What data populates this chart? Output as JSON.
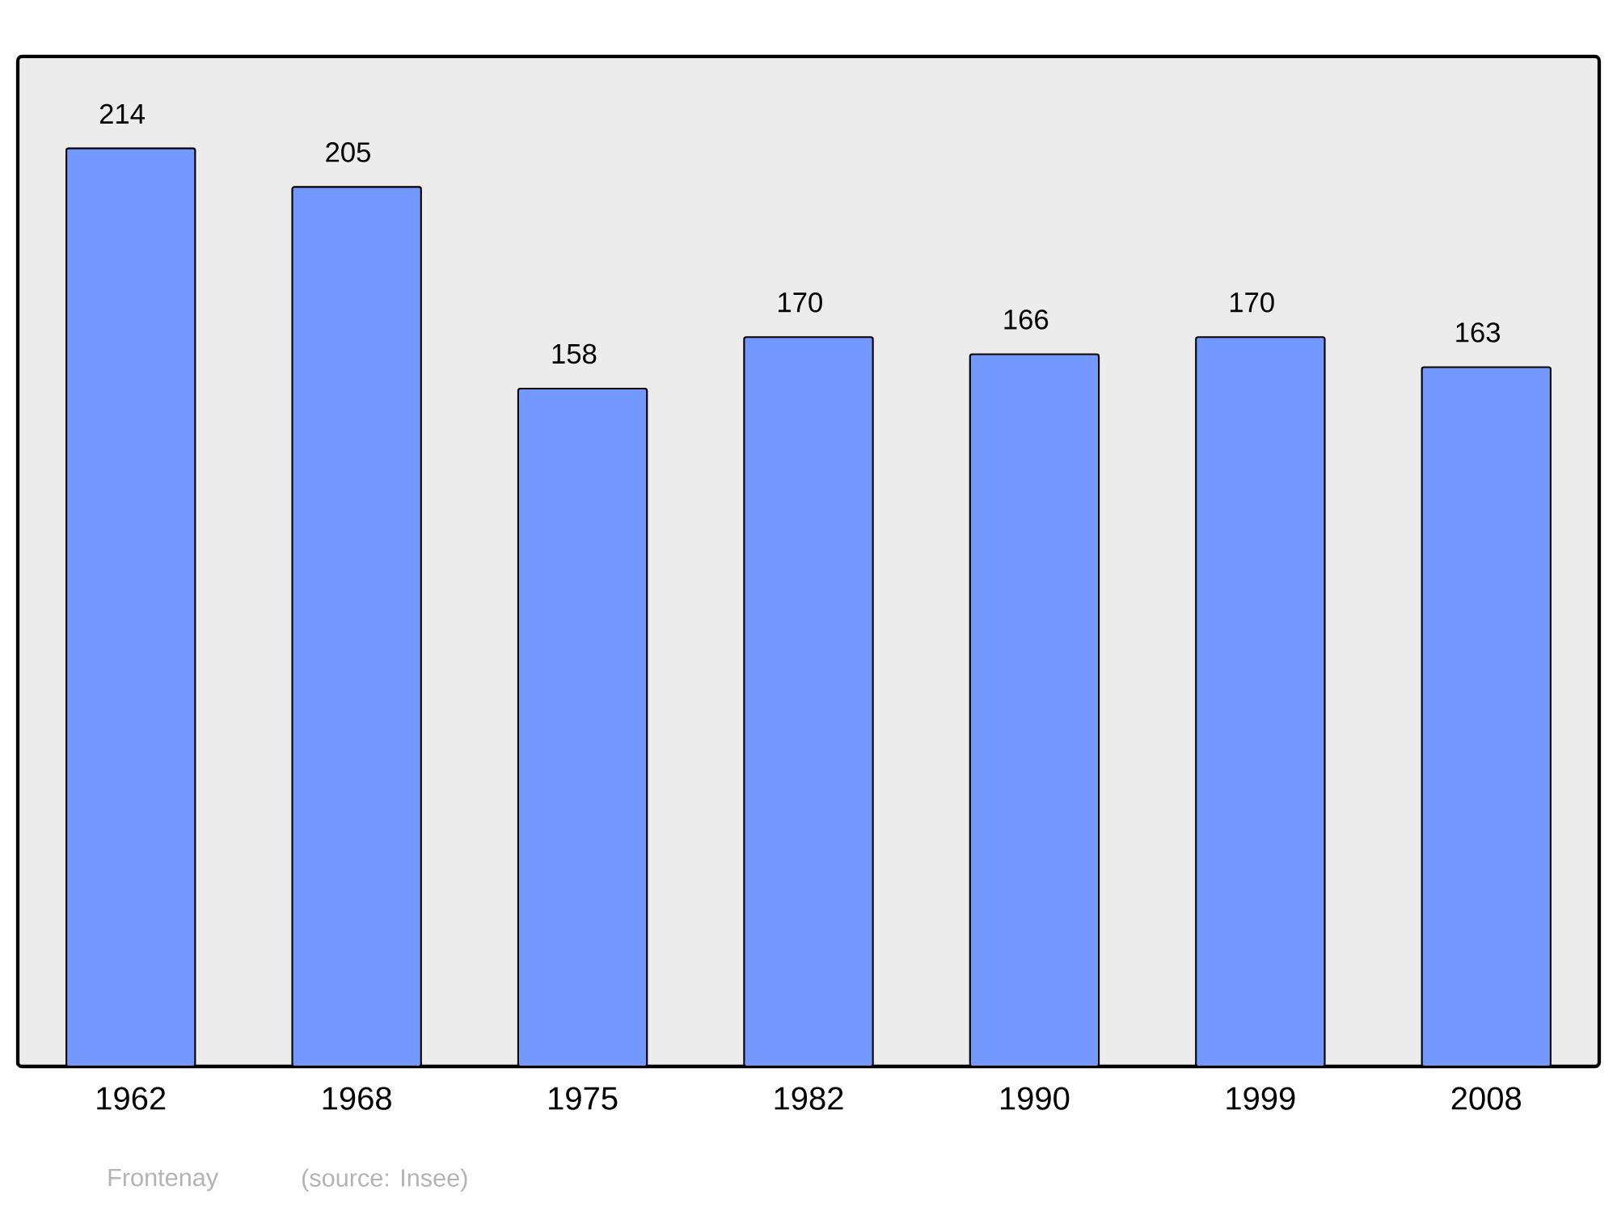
{
  "chart_data": {
    "type": "bar",
    "categories": [
      "1962",
      "1968",
      "1975",
      "1982",
      "1990",
      "1999",
      "2008"
    ],
    "values": [
      214,
      205,
      158,
      170,
      166,
      170,
      163
    ],
    "color": "#7399ff",
    "data_labels": true,
    "annotations": [
      "Frontenay",
      "(source: Insee)"
    ]
  }
}
